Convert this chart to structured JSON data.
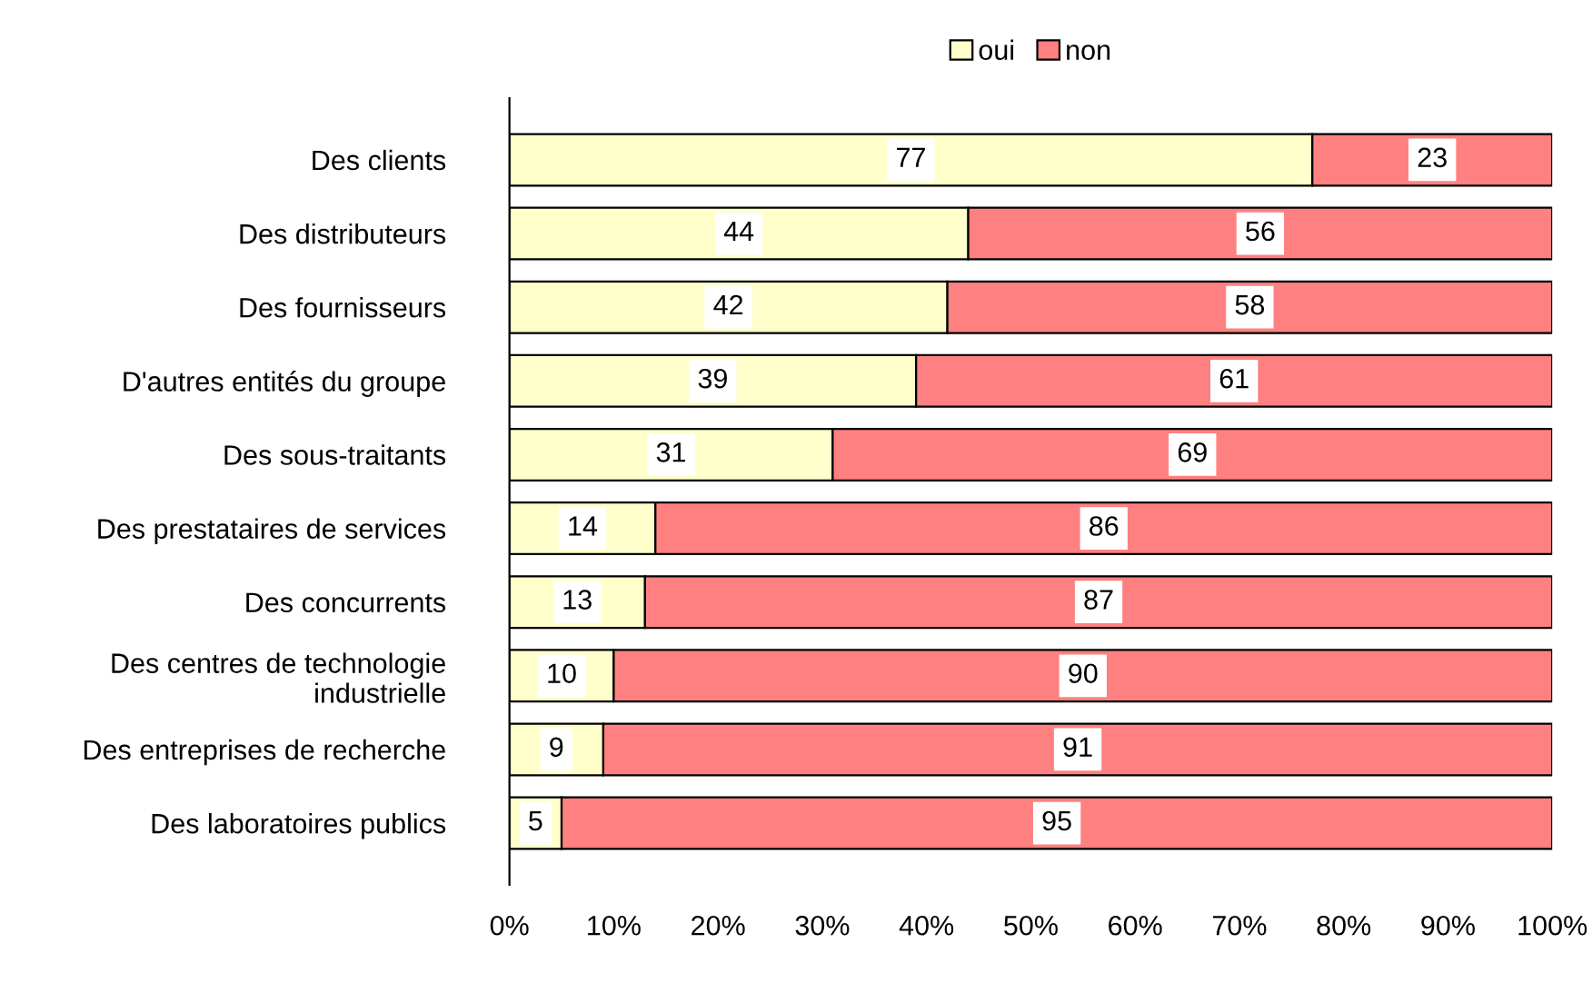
{
  "chart_data": {
    "type": "bar",
    "orientation": "horizontal",
    "stacked": true,
    "categories": [
      "Des clients",
      "Des distributeurs",
      "Des fournisseurs",
      "D'autres entités du groupe",
      "Des sous-traitants",
      "Des prestataires de services",
      "Des concurrents",
      "Des centres de technologie\nindustrielle",
      "Des entreprises de recherche",
      "Des laboratoires publics"
    ],
    "series": [
      {
        "name": "oui",
        "color": "#ffffcc",
        "values": [
          77,
          44,
          42,
          39,
          31,
          14,
          13,
          10,
          9,
          5
        ]
      },
      {
        "name": "non",
        "color": "#ff8080",
        "values": [
          23,
          56,
          58,
          61,
          69,
          86,
          87,
          90,
          91,
          95
        ]
      }
    ],
    "xlim": [
      0,
      100
    ],
    "xticks": [
      {
        "value": 0,
        "label": "0%"
      },
      {
        "value": 10,
        "label": "10%"
      },
      {
        "value": 20,
        "label": "20%"
      },
      {
        "value": 30,
        "label": "30%"
      },
      {
        "value": 40,
        "label": "40%"
      },
      {
        "value": 50,
        "label": "50%"
      },
      {
        "value": 60,
        "label": "60%"
      },
      {
        "value": 70,
        "label": "70%"
      },
      {
        "value": 80,
        "label": "80%"
      },
      {
        "value": 90,
        "label": "90%"
      },
      {
        "value": 100,
        "label": "100%"
      }
    ],
    "data_labels": true,
    "legend": "top",
    "grid": false
  }
}
